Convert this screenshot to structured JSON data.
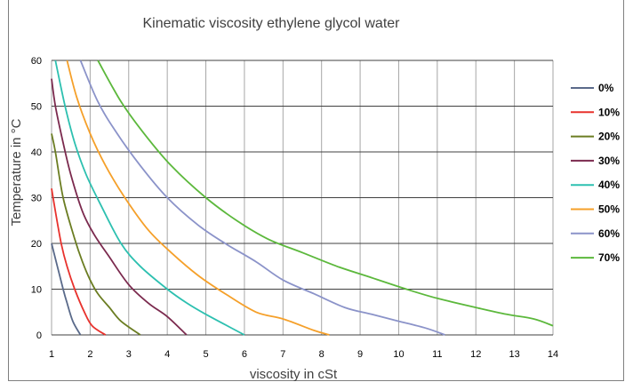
{
  "chart_data": {
    "type": "line",
    "title": "Kinematic viscosity ethylene glycol water",
    "xlabel": "viscosity in cSt",
    "ylabel": "Temperature in °C",
    "xlim": [
      1,
      14
    ],
    "ylim": [
      0,
      60
    ],
    "xticks": [
      1,
      2,
      3,
      4,
      5,
      6,
      7,
      8,
      9,
      10,
      11,
      12,
      13,
      14
    ],
    "yticks": [
      0,
      10,
      20,
      30,
      40,
      50,
      60
    ],
    "grid": true,
    "legend_position": "right",
    "series": [
      {
        "name": "0%",
        "color": "#5a6a8a",
        "points": [
          [
            1.0,
            20
          ],
          [
            1.15,
            15
          ],
          [
            1.3,
            10
          ],
          [
            1.4,
            7
          ],
          [
            1.55,
            3
          ],
          [
            1.75,
            0
          ]
        ]
      },
      {
        "name": "10%",
        "color": "#e8322d",
        "points": [
          [
            1.0,
            32
          ],
          [
            1.1,
            27
          ],
          [
            1.25,
            20
          ],
          [
            1.4,
            15
          ],
          [
            1.6,
            10
          ],
          [
            1.85,
            5
          ],
          [
            2.05,
            2
          ],
          [
            2.4,
            0
          ]
        ]
      },
      {
        "name": "20%",
        "color": "#6b7d22",
        "points": [
          [
            1.0,
            44
          ],
          [
            1.1,
            40
          ],
          [
            1.3,
            30
          ],
          [
            1.6,
            21
          ],
          [
            1.8,
            16
          ],
          [
            2.0,
            12
          ],
          [
            2.2,
            9
          ],
          [
            2.5,
            6
          ],
          [
            2.8,
            3
          ],
          [
            3.3,
            0
          ]
        ]
      },
      {
        "name": "30%",
        "color": "#7b2a4e",
        "points": [
          [
            1.0,
            56
          ],
          [
            1.1,
            50
          ],
          [
            1.3,
            42
          ],
          [
            1.5,
            35
          ],
          [
            1.8,
            27
          ],
          [
            2.1,
            22
          ],
          [
            2.5,
            17
          ],
          [
            3.0,
            11
          ],
          [
            3.5,
            7
          ],
          [
            4.0,
            4
          ],
          [
            4.5,
            0
          ]
        ]
      },
      {
        "name": "40%",
        "color": "#2dc0b0",
        "points": [
          [
            1.1,
            60
          ],
          [
            1.35,
            50
          ],
          [
            1.6,
            42
          ],
          [
            1.9,
            35
          ],
          [
            2.3,
            28
          ],
          [
            2.8,
            20
          ],
          [
            3.3,
            15
          ],
          [
            4.0,
            10
          ],
          [
            4.5,
            7
          ],
          [
            5.0,
            4.5
          ],
          [
            6.0,
            0
          ]
        ]
      },
      {
        "name": "50%",
        "color": "#f5a02a",
        "points": [
          [
            1.4,
            60
          ],
          [
            1.65,
            52
          ],
          [
            2.0,
            44
          ],
          [
            2.4,
            37
          ],
          [
            2.9,
            30
          ],
          [
            3.5,
            23
          ],
          [
            4.1,
            18
          ],
          [
            4.8,
            13
          ],
          [
            5.5,
            9
          ],
          [
            6.3,
            5
          ],
          [
            7.0,
            3.5
          ],
          [
            7.8,
            1
          ],
          [
            8.2,
            0
          ]
        ]
      },
      {
        "name": "60%",
        "color": "#8b93c9",
        "points": [
          [
            1.75,
            60
          ],
          [
            2.2,
            51
          ],
          [
            2.7,
            44
          ],
          [
            3.3,
            37
          ],
          [
            4.0,
            30
          ],
          [
            4.8,
            24
          ],
          [
            5.5,
            20
          ],
          [
            6.3,
            16
          ],
          [
            7.0,
            12
          ],
          [
            7.8,
            9
          ],
          [
            8.6,
            6
          ],
          [
            9.3,
            4.5
          ],
          [
            10.0,
            3
          ],
          [
            10.7,
            1.5
          ],
          [
            11.2,
            0
          ]
        ]
      },
      {
        "name": "70%",
        "color": "#5cb83c",
        "points": [
          [
            2.2,
            60
          ],
          [
            2.8,
            51
          ],
          [
            3.4,
            44
          ],
          [
            4.1,
            37
          ],
          [
            5.0,
            30
          ],
          [
            5.8,
            25
          ],
          [
            6.6,
            21
          ],
          [
            7.5,
            18
          ],
          [
            8.4,
            15
          ],
          [
            9.3,
            12.5
          ],
          [
            10.2,
            10
          ],
          [
            11.0,
            8
          ],
          [
            12.0,
            6
          ],
          [
            12.8,
            4.5
          ],
          [
            13.5,
            3.5
          ],
          [
            14.0,
            2
          ]
        ]
      }
    ]
  }
}
